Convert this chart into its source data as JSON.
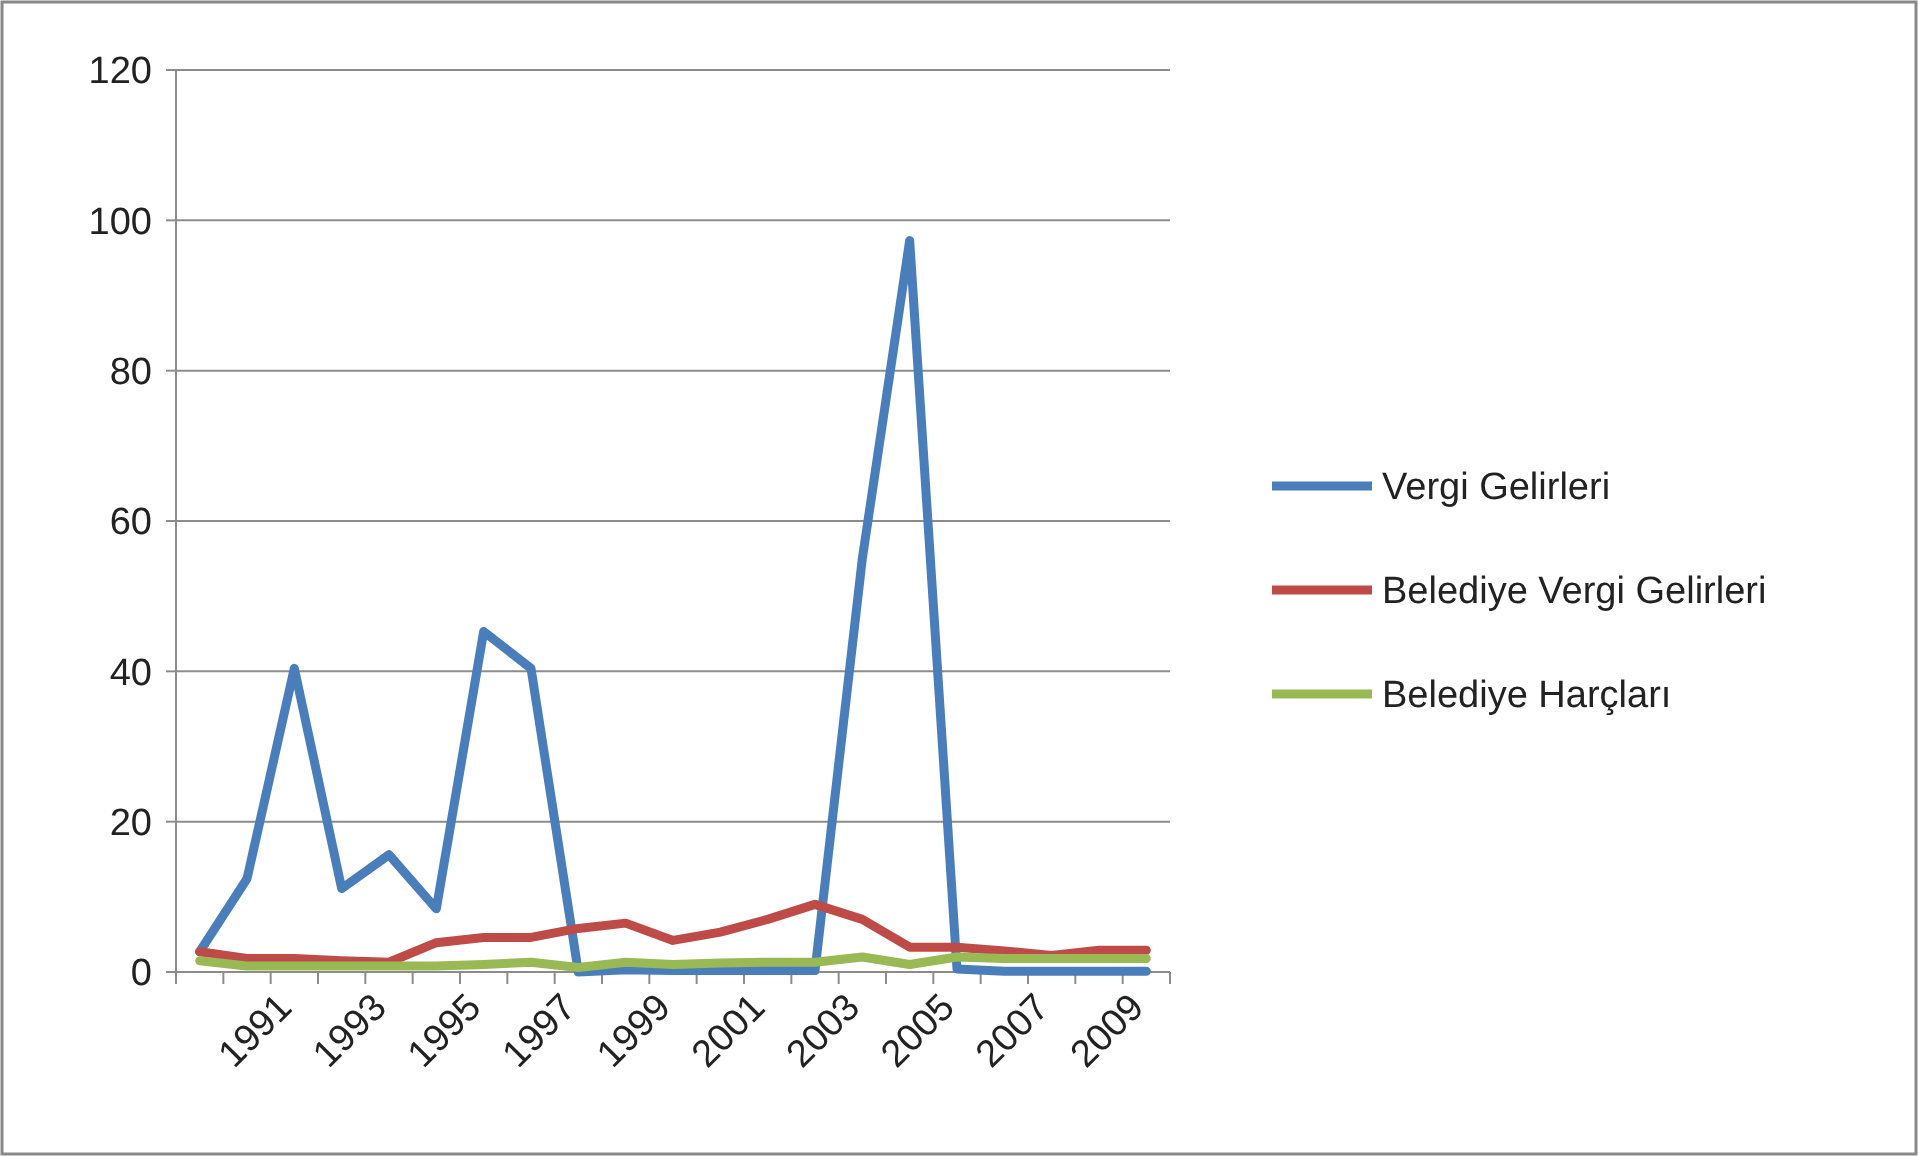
{
  "chart_data": {
    "type": "line",
    "categories": [
      null,
      null,
      "1991",
      null,
      "1993",
      null,
      "1995",
      null,
      "1997",
      null,
      "1999",
      null,
      "2001",
      null,
      "2003",
      null,
      "2005",
      null,
      "2007",
      null,
      "2009"
    ],
    "series": [
      {
        "name": "Vergi Gelirleri",
        "color": "#4a7ebb",
        "values": [
          2.7,
          12.4,
          40.4,
          11.1,
          15.6,
          8.4,
          45.3,
          40.4,
          0,
          0.3,
          0.2,
          0.2,
          0.2,
          0.2,
          55,
          97.3,
          0.4,
          0.1,
          0.1,
          0.1,
          0.1
        ]
      },
      {
        "name": "Belediye Vergi Gelirleri",
        "color": "#be4b48",
        "values": [
          2.7,
          1.8,
          1.8,
          1.5,
          1.3,
          3.9,
          4.6,
          4.6,
          5.8,
          6.5,
          4.2,
          5.3,
          7,
          9,
          7,
          3.3,
          3.3,
          2.8,
          2.2,
          2.9,
          2.9
        ]
      },
      {
        "name": "Belediye Harçları",
        "color": "#98b954",
        "values": [
          1.5,
          0.8,
          0.8,
          0.8,
          0.8,
          0.8,
          1,
          1.3,
          0.6,
          1.3,
          1,
          1.2,
          1.3,
          1.3,
          2,
          1,
          2,
          1.8,
          1.8,
          1.8,
          1.8
        ]
      }
    ],
    "ylim": [
      0,
      120
    ],
    "yticks": [
      0,
      20,
      40,
      60,
      80,
      100,
      120
    ],
    "grid": "y",
    "legend": "right",
    "marker": "none",
    "line_style": "solid"
  }
}
